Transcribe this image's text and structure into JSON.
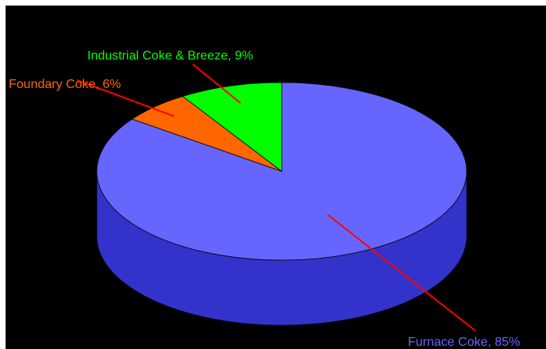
{
  "chart_data": {
    "type": "pie",
    "style": "3d",
    "categories": [
      "Furnace Coke",
      "Foundary Coke",
      "Industrial Coke & Breeze"
    ],
    "values": [
      85,
      6,
      9
    ],
    "labels": [
      "Furnace Coke, 85%",
      "Foundary Coke, 6%",
      "Industrial Coke & Breeze, 9%"
    ],
    "colors": [
      "#6666ff",
      "#ff6600",
      "#00ff00"
    ],
    "side_color": "#3333cc",
    "leader_color": "#ff0000",
    "background": "#000000",
    "title": "",
    "legend": "none"
  }
}
